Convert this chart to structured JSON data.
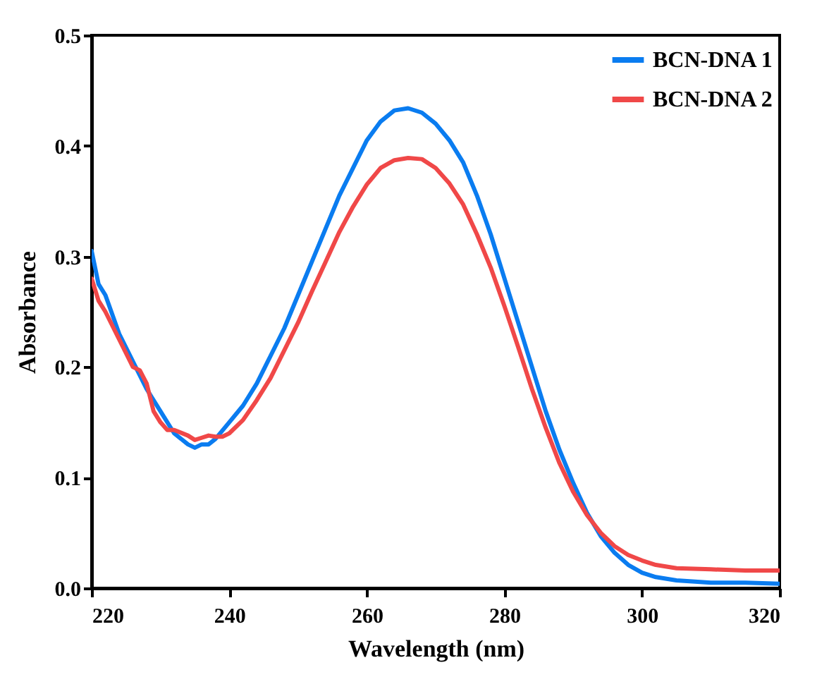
{
  "chart_data": {
    "type": "line",
    "xlabel": "Wavelength (nm)",
    "ylabel": "Absorbance",
    "xlim": [
      220,
      320
    ],
    "ylim": [
      0,
      0.5
    ],
    "xticks": [
      220,
      240,
      260,
      280,
      300,
      320
    ],
    "yticks": [
      {
        "value": 0,
        "label": "0.0"
      },
      0.1,
      0.2,
      0.3,
      0.4,
      0.5
    ],
    "grid": false,
    "legend": "top right",
    "line_style": "solid",
    "marker": "none",
    "series": [
      {
        "name": "BCN-DNA 1",
        "color": "#0a7cf0",
        "x": [
          220,
          221,
          222,
          224,
          226,
          228,
          230,
          232,
          234,
          235,
          236,
          237,
          238,
          240,
          242,
          244,
          246,
          248,
          250,
          252,
          254,
          256,
          258,
          260,
          262,
          264,
          266,
          268,
          270,
          272,
          274,
          276,
          278,
          280,
          282,
          284,
          286,
          288,
          290,
          292,
          294,
          296,
          298,
          300,
          302,
          305,
          310,
          315,
          320
        ],
        "values": [
          0.305,
          0.275,
          0.265,
          0.23,
          0.205,
          0.18,
          0.16,
          0.14,
          0.13,
          0.127,
          0.13,
          0.13,
          0.135,
          0.15,
          0.165,
          0.185,
          0.21,
          0.235,
          0.265,
          0.295,
          0.325,
          0.355,
          0.38,
          0.405,
          0.422,
          0.432,
          0.434,
          0.43,
          0.42,
          0.405,
          0.385,
          0.355,
          0.32,
          0.28,
          0.24,
          0.2,
          0.16,
          0.125,
          0.095,
          0.068,
          0.047,
          0.032,
          0.021,
          0.014,
          0.01,
          0.007,
          0.005,
          0.005,
          0.004
        ]
      },
      {
        "name": "BCN-DNA 2",
        "color": "#f04848",
        "x": [
          220,
          221,
          222,
          224,
          226,
          227,
          228,
          229,
          230,
          231,
          232,
          234,
          235,
          236,
          237,
          238,
          239,
          240,
          242,
          244,
          246,
          248,
          250,
          252,
          254,
          256,
          258,
          260,
          262,
          264,
          266,
          268,
          270,
          272,
          274,
          276,
          278,
          280,
          282,
          284,
          286,
          288,
          290,
          292,
          294,
          296,
          298,
          300,
          302,
          305,
          310,
          315,
          320
        ],
        "values": [
          0.28,
          0.26,
          0.25,
          0.225,
          0.2,
          0.197,
          0.185,
          0.16,
          0.15,
          0.143,
          0.143,
          0.138,
          0.134,
          0.136,
          0.138,
          0.137,
          0.137,
          0.14,
          0.152,
          0.17,
          0.19,
          0.215,
          0.24,
          0.268,
          0.295,
          0.322,
          0.345,
          0.365,
          0.38,
          0.387,
          0.389,
          0.388,
          0.38,
          0.366,
          0.347,
          0.32,
          0.29,
          0.255,
          0.218,
          0.18,
          0.145,
          0.113,
          0.087,
          0.066,
          0.05,
          0.038,
          0.03,
          0.025,
          0.021,
          0.018,
          0.017,
          0.016,
          0.016
        ]
      }
    ]
  }
}
